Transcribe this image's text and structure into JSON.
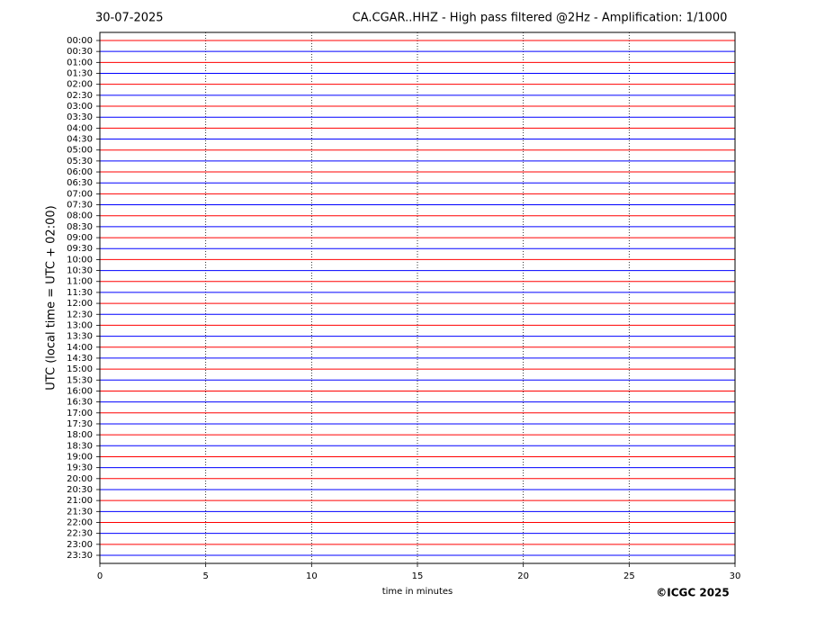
{
  "chart_data": {
    "type": "helicorder",
    "date": "30-07-2025",
    "title": "CA.CGAR..HHZ - High pass filtered @2Hz - Amplification: 1/1000",
    "ylabel": "UTC (local time = UTC + 02:00)",
    "xlabel": "time in minutes",
    "copyright": "©ICGC 2025",
    "xlim": [
      0,
      30
    ],
    "xticks": [
      0,
      5,
      10,
      15,
      20,
      25,
      30
    ],
    "grid": true,
    "colors": [
      "#ff0000",
      "#0000ff"
    ],
    "rows": [
      "00:00",
      "00:30",
      "01:00",
      "01:30",
      "02:00",
      "02:30",
      "03:00",
      "03:30",
      "04:00",
      "04:30",
      "05:00",
      "05:30",
      "06:00",
      "06:30",
      "07:00",
      "07:30",
      "08:00",
      "08:30",
      "09:00",
      "09:30",
      "10:00",
      "10:30",
      "11:00",
      "11:30",
      "12:00",
      "12:30",
      "13:00",
      "13:30",
      "14:00",
      "14:30",
      "15:00",
      "15:30",
      "16:00",
      "16:30",
      "17:00",
      "17:30",
      "18:00",
      "18:30",
      "19:00",
      "19:30",
      "20:00",
      "20:30",
      "21:00",
      "21:30",
      "22:00",
      "22:30",
      "23:00",
      "23:30"
    ]
  }
}
